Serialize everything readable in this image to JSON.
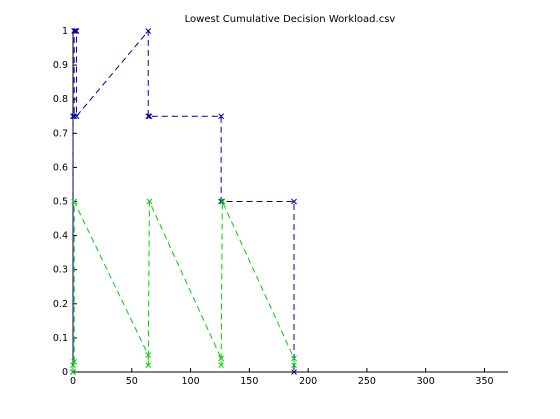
{
  "chart_data": {
    "type": "line",
    "title": "Lowest Cumulative Decision Workload.csv",
    "xlabel": "",
    "ylabel": "",
    "xlim": [
      0,
      370
    ],
    "ylim": [
      0,
      1
    ],
    "xticks": [
      0,
      50,
      100,
      150,
      200,
      250,
      300,
      350
    ],
    "yticks": [
      0,
      0.1,
      0.2,
      0.3,
      0.4,
      0.5,
      0.6,
      0.7,
      0.8,
      0.9,
      1
    ],
    "grid": false,
    "legend": "none",
    "series": [
      {
        "color": "#0000a8",
        "line_style": "dashed",
        "marker": "x",
        "points": [
          [
            0,
            0
          ],
          [
            0,
            0.75
          ],
          [
            1,
            0.75
          ],
          [
            1,
            1
          ],
          [
            2,
            1
          ],
          [
            3,
            1
          ],
          [
            3,
            0.75
          ],
          [
            64,
            1
          ],
          [
            64,
            0.75
          ],
          [
            65,
            0.75
          ],
          [
            126,
            0.75
          ],
          [
            126,
            0.5
          ],
          [
            127,
            0.5
          ],
          [
            188,
            0.5
          ],
          [
            188,
            0
          ]
        ]
      },
      {
        "color": "#00d000",
        "line_style": "dashed",
        "marker": "x",
        "points": [
          [
            0,
            0
          ],
          [
            0,
            0.02
          ],
          [
            1,
            0.03
          ],
          [
            1,
            0.5
          ],
          [
            64,
            0.05
          ],
          [
            64,
            0.02
          ],
          [
            65,
            0.5
          ],
          [
            126,
            0.04
          ],
          [
            126,
            0.02
          ],
          [
            127,
            0.5
          ],
          [
            188,
            0.04
          ],
          [
            188,
            0.02
          ]
        ]
      }
    ]
  }
}
